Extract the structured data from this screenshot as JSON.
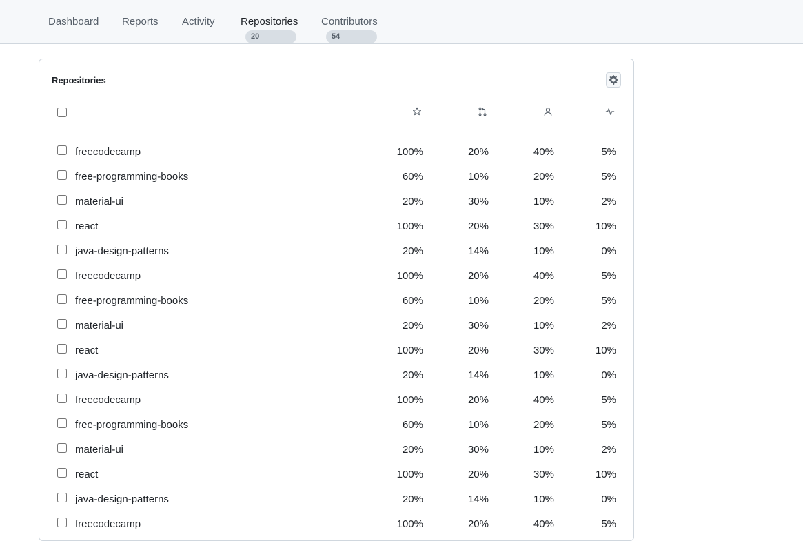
{
  "nav": {
    "tabs": [
      {
        "label": "Dashboard",
        "count": null,
        "active": false
      },
      {
        "label": "Reports",
        "count": null,
        "active": false
      },
      {
        "label": "Activity",
        "count": null,
        "active": false
      },
      {
        "label": "Repositories",
        "count": "20",
        "active": true
      },
      {
        "label": "Contributors",
        "count": "54",
        "active": false
      }
    ]
  },
  "panel": {
    "title": "Repositories",
    "settings_icon": "gear-icon",
    "columns": [
      {
        "icon": "star-icon"
      },
      {
        "icon": "pull-request-icon"
      },
      {
        "icon": "person-icon"
      },
      {
        "icon": "pulse-icon"
      }
    ],
    "rows": [
      {
        "name": "freecodecamp",
        "values": [
          "100%",
          "20%",
          "40%",
          "5%"
        ]
      },
      {
        "name": "free-programming-books",
        "values": [
          "60%",
          "10%",
          "20%",
          "5%"
        ]
      },
      {
        "name": "material-ui",
        "values": [
          "20%",
          "30%",
          "10%",
          "2%"
        ]
      },
      {
        "name": "react",
        "values": [
          "100%",
          "20%",
          "30%",
          "10%"
        ]
      },
      {
        "name": "java-design-patterns",
        "values": [
          "20%",
          "14%",
          "10%",
          "0%"
        ]
      },
      {
        "name": "freecodecamp",
        "values": [
          "100%",
          "20%",
          "40%",
          "5%"
        ]
      },
      {
        "name": "free-programming-books",
        "values": [
          "60%",
          "10%",
          "20%",
          "5%"
        ]
      },
      {
        "name": "material-ui",
        "values": [
          "20%",
          "30%",
          "10%",
          "2%"
        ]
      },
      {
        "name": "react",
        "values": [
          "100%",
          "20%",
          "30%",
          "10%"
        ]
      },
      {
        "name": "java-design-patterns",
        "values": [
          "20%",
          "14%",
          "10%",
          "0%"
        ]
      },
      {
        "name": "freecodecamp",
        "values": [
          "100%",
          "20%",
          "40%",
          "5%"
        ]
      },
      {
        "name": "free-programming-books",
        "values": [
          "60%",
          "10%",
          "20%",
          "5%"
        ]
      },
      {
        "name": "material-ui",
        "values": [
          "20%",
          "30%",
          "10%",
          "2%"
        ]
      },
      {
        "name": "react",
        "values": [
          "100%",
          "20%",
          "30%",
          "10%"
        ]
      },
      {
        "name": "java-design-patterns",
        "values": [
          "20%",
          "14%",
          "10%",
          "0%"
        ]
      },
      {
        "name": "freecodecamp",
        "values": [
          "100%",
          "20%",
          "40%",
          "5%"
        ]
      }
    ]
  }
}
